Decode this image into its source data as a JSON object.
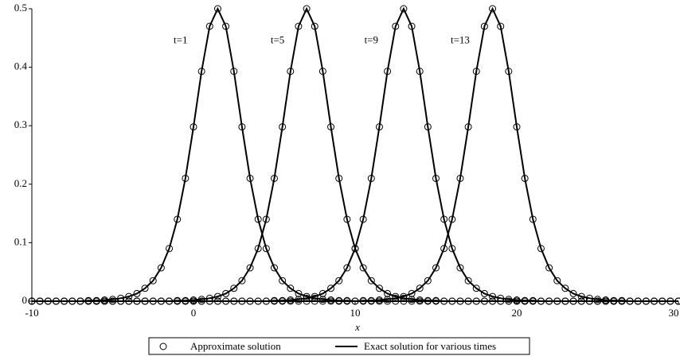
{
  "chart_data": {
    "type": "line",
    "xlabel": "x",
    "x": [
      -10,
      -9.5,
      -9,
      -8.5,
      -8,
      -7.5,
      -7,
      -6.5,
      -6,
      -5.5,
      -5,
      -4.5,
      -4,
      -3.5,
      -3,
      -2.5,
      -2,
      -1.5,
      -1,
      -0.5,
      0,
      0.5,
      1,
      1.5,
      2,
      2.5,
      3,
      3.5,
      4,
      4.5,
      5,
      5.5,
      6,
      6.5,
      7,
      7.5,
      8,
      8.5,
      9,
      9.5,
      10,
      10.5,
      11,
      11.5,
      12,
      12.5,
      13,
      13.5,
      14,
      14.5,
      15,
      15.5,
      16,
      16.5,
      17,
      17.5,
      18,
      18.5,
      19,
      19.5,
      20,
      20.5,
      21,
      21.5,
      22,
      22.5,
      23,
      23.5,
      24,
      24.5,
      25,
      25.5,
      26,
      26.5,
      27,
      27.5,
      28,
      28.5,
      29,
      29.5,
      30
    ],
    "xlim": [
      -10,
      30
    ],
    "xticks": [
      -10,
      0,
      10,
      20,
      30
    ],
    "ylim": [
      0,
      0.5
    ],
    "yticks": [
      0,
      0.1,
      0.2,
      0.3,
      0.4,
      0.5
    ],
    "annotations": [
      "t=1",
      "t=5",
      "t=9",
      "t=13"
    ],
    "legend": "bottom",
    "series": [
      {
        "name": "Approximate solution",
        "style": "markers",
        "color": "#000000",
        "curves": [
          [
            0,
            0,
            0,
            0,
            0,
            0,
            0,
            0.001,
            0.001,
            0.002,
            0.003,
            0.005,
            0.008,
            0.013,
            0.022,
            0.035,
            0.057,
            0.09,
            0.14,
            0.21,
            0.298,
            0.393,
            0.47,
            0.5,
            0.47,
            0.393,
            0.298,
            0.21,
            0.14,
            0.09,
            0.057,
            0.035,
            0.022,
            0.013,
            0.008,
            0.005,
            0.003,
            0.002,
            0.001,
            0.001,
            0,
            0,
            0,
            0,
            0,
            0,
            0,
            0,
            0,
            0,
            0,
            0,
            0,
            0,
            0,
            0,
            0,
            0,
            0,
            0,
            0,
            0,
            0,
            0,
            0,
            0,
            0,
            0,
            0,
            0,
            0,
            0,
            0,
            0,
            0,
            0,
            0,
            0,
            0,
            0,
            0
          ],
          [
            0,
            0,
            0,
            0,
            0,
            0,
            0,
            0,
            0,
            0,
            0,
            0,
            0,
            0,
            0,
            0,
            0,
            0,
            0.001,
            0.001,
            0.002,
            0.003,
            0.005,
            0.008,
            0.013,
            0.022,
            0.035,
            0.057,
            0.09,
            0.14,
            0.21,
            0.298,
            0.393,
            0.47,
            0.5,
            0.47,
            0.393,
            0.298,
            0.21,
            0.14,
            0.09,
            0.057,
            0.035,
            0.022,
            0.013,
            0.008,
            0.005,
            0.003,
            0.002,
            0.001,
            0.001,
            0,
            0,
            0,
            0,
            0,
            0,
            0,
            0,
            0,
            0,
            0,
            0,
            0,
            0,
            0,
            0,
            0,
            0,
            0,
            0,
            0,
            0,
            0,
            0,
            0,
            0,
            0,
            0,
            0,
            0
          ],
          [
            0,
            0,
            0,
            0,
            0,
            0,
            0,
            0,
            0,
            0,
            0,
            0,
            0,
            0,
            0,
            0,
            0,
            0,
            0,
            0,
            0,
            0,
            0,
            0,
            0,
            0,
            0,
            0,
            0,
            0,
            0.001,
            0.001,
            0.002,
            0.003,
            0.005,
            0.008,
            0.013,
            0.022,
            0.035,
            0.057,
            0.09,
            0.14,
            0.21,
            0.298,
            0.393,
            0.47,
            0.5,
            0.47,
            0.393,
            0.298,
            0.21,
            0.14,
            0.09,
            0.057,
            0.035,
            0.022,
            0.013,
            0.008,
            0.005,
            0.003,
            0.002,
            0.001,
            0.001,
            0,
            0,
            0,
            0,
            0,
            0,
            0,
            0,
            0,
            0,
            0,
            0,
            0,
            0,
            0,
            0,
            0,
            0
          ],
          [
            0,
            0,
            0,
            0,
            0,
            0,
            0,
            0,
            0,
            0,
            0,
            0,
            0,
            0,
            0,
            0,
            0,
            0,
            0,
            0,
            0,
            0,
            0,
            0,
            0,
            0,
            0,
            0,
            0,
            0,
            0,
            0,
            0,
            0,
            0,
            0,
            0,
            0,
            0,
            0,
            0,
            0.001,
            0.001,
            0.002,
            0.003,
            0.005,
            0.008,
            0.013,
            0.022,
            0.035,
            0.057,
            0.09,
            0.14,
            0.21,
            0.298,
            0.393,
            0.47,
            0.5,
            0.47,
            0.393,
            0.298,
            0.21,
            0.14,
            0.09,
            0.057,
            0.035,
            0.022,
            0.013,
            0.008,
            0.005,
            0.003,
            0.002,
            0.001,
            0.001,
            0,
            0,
            0,
            0,
            0,
            0,
            0
          ]
        ]
      },
      {
        "name": "Exact solution for various times",
        "style": "line",
        "color": "#000000",
        "curves": [
          [
            0,
            0,
            0,
            0,
            0,
            0,
            0,
            0.001,
            0.001,
            0.002,
            0.003,
            0.005,
            0.008,
            0.013,
            0.022,
            0.035,
            0.057,
            0.09,
            0.14,
            0.21,
            0.298,
            0.393,
            0.47,
            0.5,
            0.47,
            0.393,
            0.298,
            0.21,
            0.14,
            0.09,
            0.057,
            0.035,
            0.022,
            0.013,
            0.008,
            0.005,
            0.003,
            0.002,
            0.001,
            0.001,
            0,
            0,
            0,
            0,
            0,
            0,
            0,
            0,
            0,
            0,
            0,
            0,
            0,
            0,
            0,
            0,
            0,
            0,
            0,
            0,
            0,
            0,
            0,
            0,
            0,
            0,
            0,
            0,
            0,
            0,
            0,
            0,
            0,
            0,
            0,
            0,
            0,
            0,
            0,
            0,
            0
          ],
          [
            0,
            0,
            0,
            0,
            0,
            0,
            0,
            0,
            0,
            0,
            0,
            0,
            0,
            0,
            0,
            0,
            0,
            0,
            0.001,
            0.001,
            0.002,
            0.003,
            0.005,
            0.008,
            0.013,
            0.022,
            0.035,
            0.057,
            0.09,
            0.14,
            0.21,
            0.298,
            0.393,
            0.47,
            0.5,
            0.47,
            0.393,
            0.298,
            0.21,
            0.14,
            0.09,
            0.057,
            0.035,
            0.022,
            0.013,
            0.008,
            0.005,
            0.003,
            0.002,
            0.001,
            0.001,
            0,
            0,
            0,
            0,
            0,
            0,
            0,
            0,
            0,
            0,
            0,
            0,
            0,
            0,
            0,
            0,
            0,
            0,
            0,
            0,
            0,
            0,
            0,
            0,
            0,
            0,
            0,
            0,
            0,
            0
          ],
          [
            0,
            0,
            0,
            0,
            0,
            0,
            0,
            0,
            0,
            0,
            0,
            0,
            0,
            0,
            0,
            0,
            0,
            0,
            0,
            0,
            0,
            0,
            0,
            0,
            0,
            0,
            0,
            0,
            0,
            0,
            0.001,
            0.001,
            0.002,
            0.003,
            0.005,
            0.008,
            0.013,
            0.022,
            0.035,
            0.057,
            0.09,
            0.14,
            0.21,
            0.298,
            0.393,
            0.47,
            0.5,
            0.47,
            0.393,
            0.298,
            0.21,
            0.14,
            0.09,
            0.057,
            0.035,
            0.022,
            0.013,
            0.008,
            0.005,
            0.003,
            0.002,
            0.001,
            0.001,
            0,
            0,
            0,
            0,
            0,
            0,
            0,
            0,
            0,
            0,
            0,
            0,
            0,
            0,
            0,
            0,
            0,
            0
          ],
          [
            0,
            0,
            0,
            0,
            0,
            0,
            0,
            0,
            0,
            0,
            0,
            0,
            0,
            0,
            0,
            0,
            0,
            0,
            0,
            0,
            0,
            0,
            0,
            0,
            0,
            0,
            0,
            0,
            0,
            0,
            0,
            0,
            0,
            0,
            0,
            0,
            0,
            0,
            0,
            0,
            0,
            0.001,
            0.001,
            0.002,
            0.003,
            0.005,
            0.008,
            0.013,
            0.022,
            0.035,
            0.057,
            0.09,
            0.14,
            0.21,
            0.298,
            0.393,
            0.47,
            0.5,
            0.47,
            0.393,
            0.298,
            0.21,
            0.14,
            0.09,
            0.057,
            0.035,
            0.022,
            0.013,
            0.008,
            0.005,
            0.003,
            0.002,
            0.001,
            0.001,
            0,
            0,
            0,
            0,
            0,
            0,
            0
          ]
        ]
      }
    ]
  }
}
